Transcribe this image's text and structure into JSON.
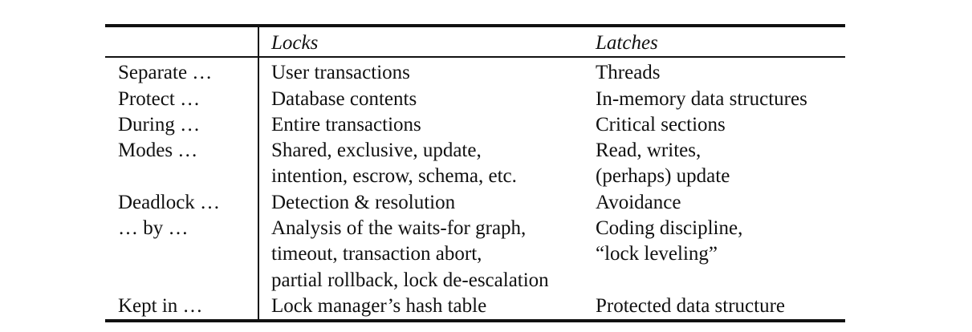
{
  "table": {
    "header": {
      "col0": "",
      "col1": "Locks",
      "col2": "Latches"
    },
    "rows": [
      {
        "label": "Separate …",
        "locks": [
          "User transactions"
        ],
        "latches": [
          "Threads"
        ]
      },
      {
        "label": "Protect …",
        "locks": [
          "Database contents"
        ],
        "latches": [
          "In-memory data structures"
        ]
      },
      {
        "label": "During …",
        "locks": [
          "Entire transactions"
        ],
        "latches": [
          "Critical sections"
        ]
      },
      {
        "label": "Modes …",
        "locks": [
          "Shared, exclusive, update,",
          "intention, escrow, schema, etc."
        ],
        "latches": [
          "Read, writes,",
          "(perhaps) update"
        ]
      },
      {
        "label": "Deadlock …",
        "locks": [
          "Detection & resolution"
        ],
        "latches": [
          "Avoidance"
        ]
      },
      {
        "label": "… by …",
        "locks": [
          "Analysis of the waits-for graph,",
          "timeout, transaction abort,",
          "partial rollback, lock de-escalation"
        ],
        "latches": [
          "Coding discipline,",
          "“lock leveling”"
        ]
      },
      {
        "label": "Kept in …",
        "locks": [
          "Lock manager’s hash table"
        ],
        "latches": [
          "Protected data structure"
        ]
      }
    ]
  }
}
